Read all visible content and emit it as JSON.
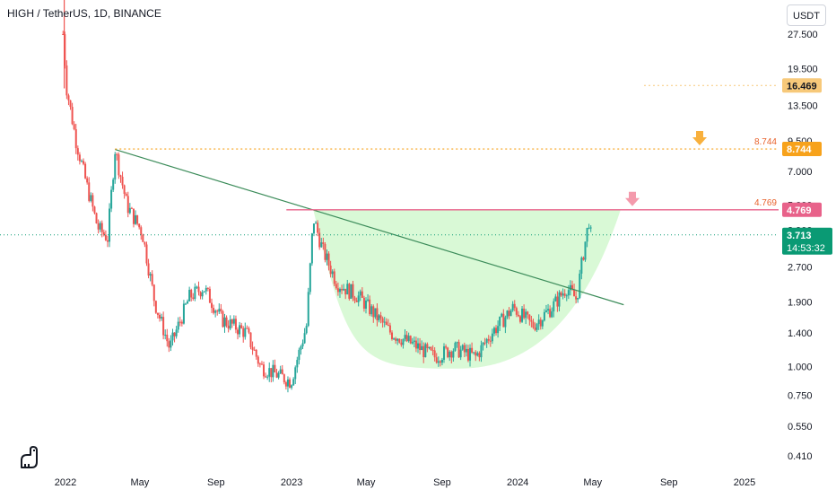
{
  "header": {
    "title": "HIGH / TetherUS, 1D, BINANCE",
    "currency": "USDT"
  },
  "colors": {
    "up": "#26a69a",
    "down": "#ef5350",
    "trendline": "#3c8c5a",
    "cup_fill": "#ccf7c8",
    "resistance": "#e8628a",
    "target": "#f7a21b",
    "current": "#0a9a74",
    "highlight": "#f7c97a"
  },
  "chart_data": {
    "type": "candlestick",
    "title": "HIGH / TetherUS, 1D, BINANCE",
    "y_scale": "log",
    "y_ticks": [
      "27.500",
      "19.500",
      "13.500",
      "9.500",
      "7.000",
      "5.000",
      "3.900",
      "2.700",
      "1.900",
      "1.400",
      "1.000",
      "0.750",
      "0.550",
      "0.410"
    ],
    "x_ticks": [
      "2022",
      "May",
      "Sep",
      "2023",
      "May",
      "Sep",
      "2024",
      "May",
      "Sep",
      "2025"
    ],
    "price_path": [
      [
        "2021-12-28",
        27.5
      ],
      [
        "2022-01-03",
        16.0
      ],
      [
        "2022-01-18",
        9.5
      ],
      [
        "2022-02-05",
        6.0
      ],
      [
        "2022-02-22",
        4.0
      ],
      [
        "2022-03-10",
        3.6
      ],
      [
        "2022-03-22",
        8.7
      ],
      [
        "2022-04-10",
        5.0
      ],
      [
        "2022-05-05",
        3.8
      ],
      [
        "2022-05-25",
        1.9
      ],
      [
        "2022-06-18",
        1.2
      ],
      [
        "2022-07-20",
        2.0
      ],
      [
        "2022-08-12",
        2.2
      ],
      [
        "2022-09-10",
        1.6
      ],
      [
        "2022-10-20",
        1.4
      ],
      [
        "2022-11-12",
        1.0
      ],
      [
        "2022-12-31",
        0.86
      ],
      [
        "2023-01-25",
        1.5
      ],
      [
        "2023-02-05",
        4.4
      ],
      [
        "2023-02-20",
        3.2
      ],
      [
        "2023-03-15",
        2.3
      ],
      [
        "2023-04-20",
        2.0
      ],
      [
        "2023-06-10",
        1.4
      ],
      [
        "2023-07-15",
        1.25
      ],
      [
        "2023-08-20",
        1.1
      ],
      [
        "2023-09-20",
        1.2
      ],
      [
        "2023-10-25",
        1.1
      ],
      [
        "2023-11-20",
        1.4
      ],
      [
        "2023-12-25",
        1.8
      ],
      [
        "2024-01-25",
        1.5
      ],
      [
        "2024-02-25",
        1.8
      ],
      [
        "2024-03-20",
        2.2
      ],
      [
        "2024-04-05",
        1.95
      ],
      [
        "2024-04-15",
        3.0
      ],
      [
        "2024-04-25",
        4.3
      ],
      [
        "2024-04-28",
        3.713
      ]
    ],
    "trendline": {
      "from": [
        "2022-03-22",
        8.7
      ],
      "to": [
        "2024-06-20",
        1.85
      ]
    },
    "resistance": {
      "price": 4.769,
      "from": "2023-02-05",
      "label": "4.769"
    },
    "target": {
      "price": 8.744,
      "from": "2022-03-22",
      "label": "8.744"
    },
    "highlight_price": {
      "price": 16.469,
      "label": "16.469"
    },
    "current_price": {
      "price": 3.713,
      "label": "3.713",
      "countdown": "14:53:32"
    },
    "cup_pattern": {
      "from": "2023-02-05",
      "bottom": [
        "2023-10-05",
        0.98
      ],
      "to": "2024-06-15",
      "rim_price": 4.769
    }
  }
}
